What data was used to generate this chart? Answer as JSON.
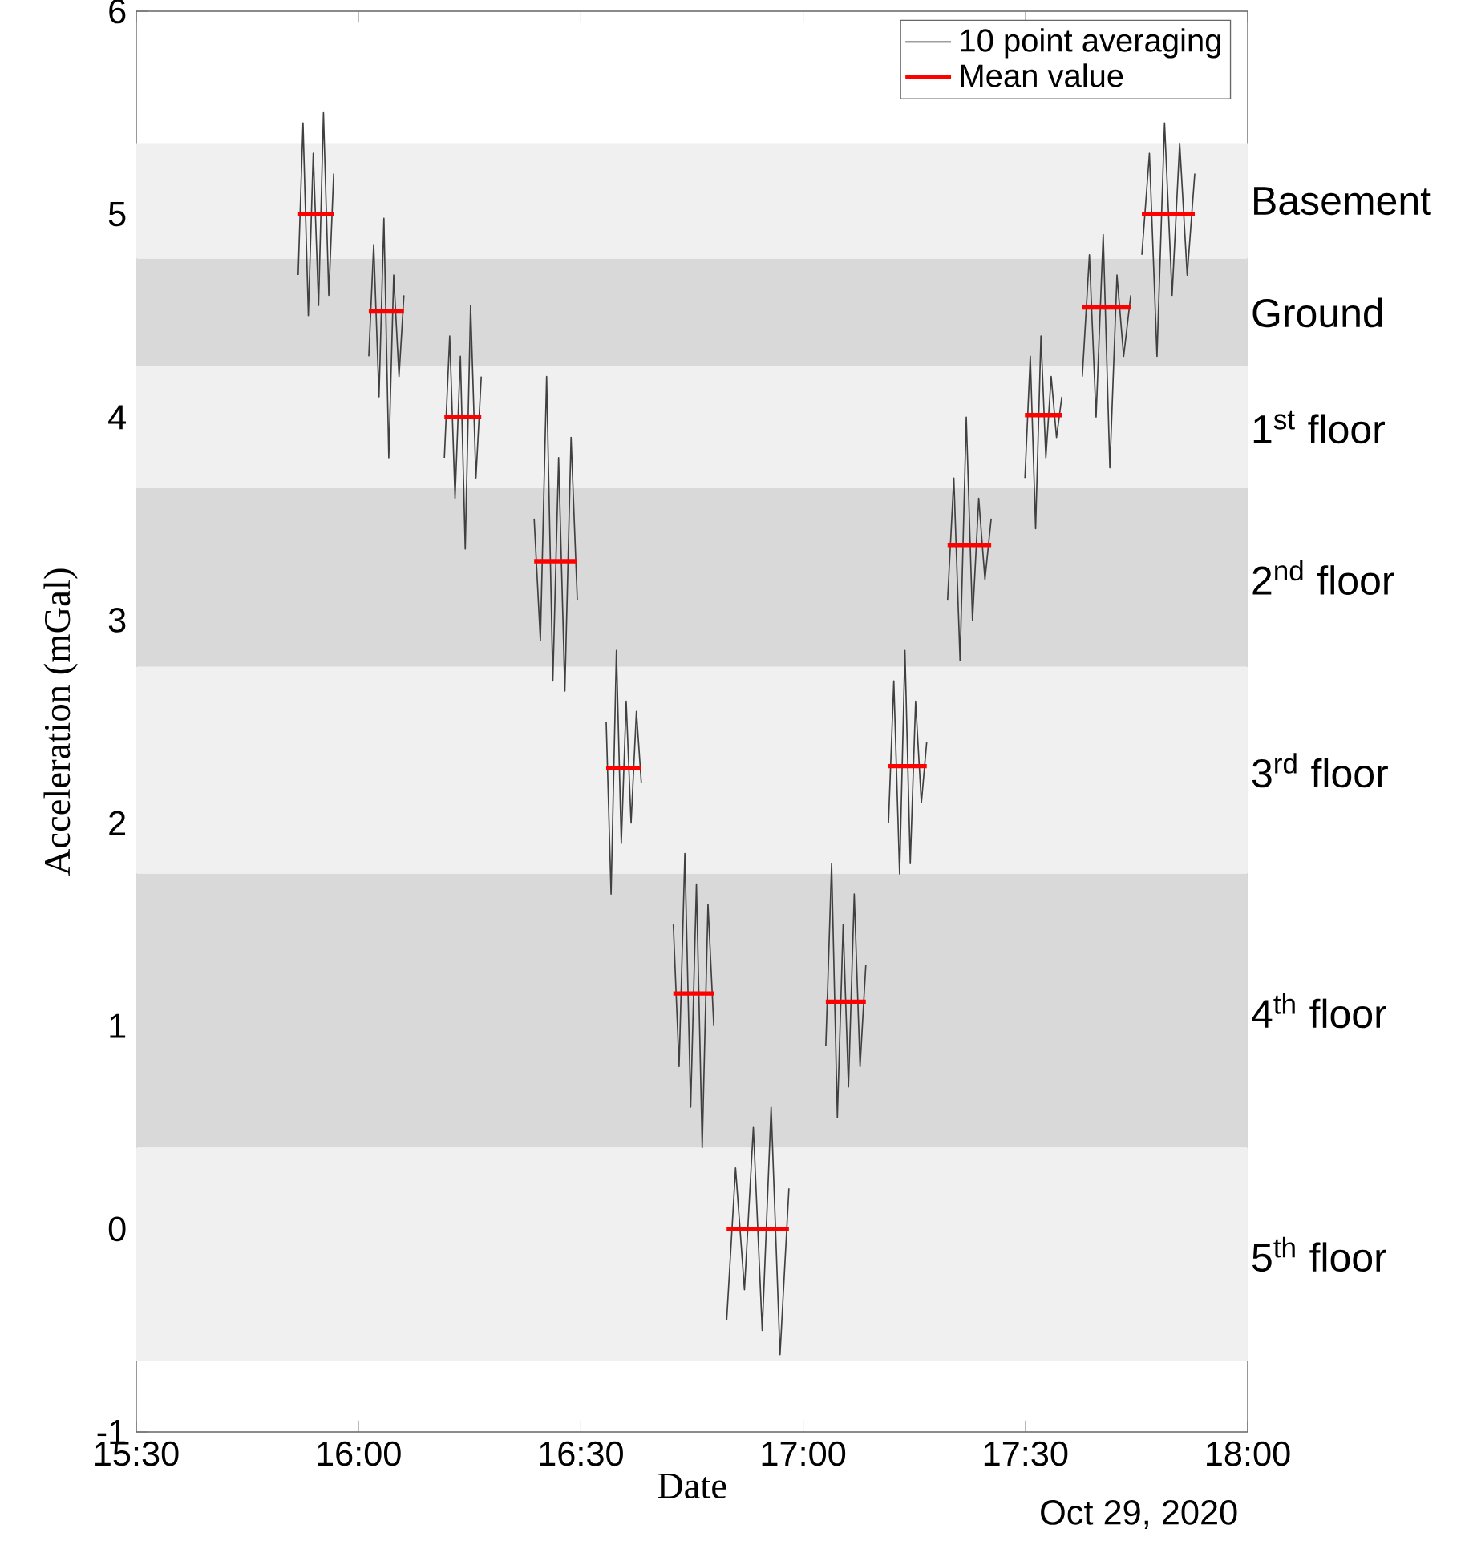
{
  "chart_data": {
    "type": "line",
    "xlabel": "Date",
    "ylabel": "Acceleration (mGal)",
    "annotations": [
      "Oct 29, 2020"
    ],
    "xlim": [
      15.5,
      18
    ],
    "ylim": [
      -1,
      6
    ],
    "xticks": [
      {
        "value": 15.5,
        "label": "15:30"
      },
      {
        "value": 16,
        "label": "16:00"
      },
      {
        "value": 16.5,
        "label": "16:30"
      },
      {
        "value": 17,
        "label": "17:00"
      },
      {
        "value": 17.5,
        "label": "17:30"
      },
      {
        "value": 18,
        "label": "18:00"
      }
    ],
    "yticks": [
      -1,
      0,
      1,
      2,
      3,
      4,
      5,
      6
    ],
    "legend": "top right",
    "bands": [
      {
        "axis": "y",
        "from": 4.78,
        "to": 5.35,
        "label": "Basement",
        "color": "#f0f0f0"
      },
      {
        "axis": "y",
        "from": 4.25,
        "to": 4.78,
        "label": "Ground",
        "color": "#d9d9d9"
      },
      {
        "axis": "y",
        "from": 3.65,
        "to": 4.25,
        "label": "1$^{st}$ floor",
        "color": "#f0f0f0"
      },
      {
        "axis": "y",
        "from": 2.77,
        "to": 3.65,
        "label": "2$^{nd}$ floor",
        "color": "#d9d9d9"
      },
      {
        "axis": "y",
        "from": 1.75,
        "to": 2.77,
        "label": "3$^{rd}$ floor",
        "color": "#f0f0f0"
      },
      {
        "axis": "y",
        "from": 0.4,
        "to": 1.75,
        "label": "4$^{th}$ floor",
        "color": "#d9d9d9"
      },
      {
        "axis": "y",
        "from": -0.65,
        "to": 0.4,
        "label": "5$^{th}$ floor",
        "color": "#f0f0f0"
      }
    ],
    "series": [
      {
        "name": "10 point averaging",
        "color": "#404040",
        "x": [
          15.864,
          15.875,
          15.887,
          15.898,
          15.91,
          15.921,
          15.933,
          15.944,
          null,
          16.023,
          16.034,
          16.046,
          16.057,
          16.068,
          16.079,
          16.091,
          16.102,
          null,
          16.193,
          16.205,
          16.217,
          16.229,
          16.24,
          16.252,
          16.264,
          16.276,
          null,
          16.395,
          16.409,
          16.423,
          16.437,
          16.45,
          16.464,
          16.478,
          16.492,
          null,
          16.557,
          16.568,
          16.58,
          16.591,
          16.602,
          16.613,
          16.625,
          16.636,
          null,
          16.708,
          16.721,
          16.734,
          16.747,
          16.76,
          16.773,
          16.786,
          16.799,
          null,
          16.828,
          16.848,
          16.868,
          16.888,
          16.908,
          16.928,
          16.948,
          16.968,
          null,
          17.051,
          17.064,
          17.077,
          17.09,
          17.102,
          17.115,
          17.128,
          17.141,
          null,
          17.192,
          17.204,
          17.217,
          17.229,
          17.241,
          17.253,
          17.266,
          17.278,
          null,
          17.325,
          17.339,
          17.353,
          17.367,
          17.381,
          17.395,
          17.409,
          17.423,
          null,
          17.499,
          17.511,
          17.523,
          17.535,
          17.546,
          17.558,
          17.57,
          17.582,
          null,
          17.628,
          17.644,
          17.659,
          17.675,
          17.69,
          17.706,
          17.721,
          17.737,
          null,
          17.762,
          17.779,
          17.796,
          17.813,
          17.83,
          17.847,
          17.864,
          17.881
        ],
        "values": [
          4.7,
          5.45,
          4.5,
          5.3,
          4.55,
          5.5,
          4.6,
          5.2,
          null,
          4.3,
          4.85,
          4.1,
          4.98,
          3.8,
          4.7,
          4.2,
          4.6,
          null,
          3.8,
          4.4,
          3.6,
          4.3,
          3.35,
          4.55,
          3.7,
          4.2,
          null,
          3.5,
          2.9,
          4.2,
          2.7,
          3.8,
          2.65,
          3.9,
          3.1,
          null,
          2.5,
          1.65,
          2.85,
          1.9,
          2.6,
          2.0,
          2.55,
          2.2,
          null,
          1.5,
          0.8,
          1.85,
          0.6,
          1.7,
          0.4,
          1.6,
          1.0,
          null,
          -0.45,
          0.3,
          -0.3,
          0.5,
          -0.5,
          0.6,
          -0.62,
          0.2,
          null,
          0.9,
          1.8,
          0.55,
          1.5,
          0.7,
          1.65,
          0.8,
          1.3,
          null,
          2.0,
          2.7,
          1.75,
          2.85,
          1.8,
          2.6,
          2.1,
          2.4,
          null,
          3.1,
          3.7,
          2.8,
          4.0,
          3.0,
          3.6,
          3.2,
          3.5,
          null,
          3.7,
          4.3,
          3.45,
          4.4,
          3.8,
          4.2,
          3.9,
          4.1,
          null,
          4.2,
          4.8,
          4.0,
          4.9,
          3.75,
          4.7,
          4.3,
          4.6,
          null,
          4.8,
          5.3,
          4.3,
          5.45,
          4.6,
          5.35,
          4.7,
          5.2
        ]
      },
      {
        "name": "Mean value",
        "color": "#ff0000",
        "x": [
          15.864,
          15.944,
          null,
          16.023,
          16.102,
          null,
          16.193,
          16.276,
          null,
          16.395,
          16.492,
          null,
          16.557,
          16.636,
          null,
          16.708,
          16.799,
          null,
          16.828,
          16.968,
          null,
          17.051,
          17.141,
          null,
          17.192,
          17.278,
          null,
          17.325,
          17.423,
          null,
          17.499,
          17.582,
          null,
          17.628,
          17.737,
          null,
          17.762,
          17.881
        ],
        "values": [
          5.0,
          5.0,
          null,
          4.52,
          4.52,
          null,
          4.0,
          4.0,
          null,
          3.29,
          3.29,
          null,
          2.27,
          2.27,
          null,
          1.16,
          1.16,
          null,
          0.0,
          0.0,
          null,
          1.12,
          1.12,
          null,
          2.28,
          2.28,
          null,
          3.37,
          3.37,
          null,
          4.01,
          4.01,
          null,
          4.54,
          4.54,
          null,
          5.0,
          5.0
        ]
      }
    ]
  }
}
